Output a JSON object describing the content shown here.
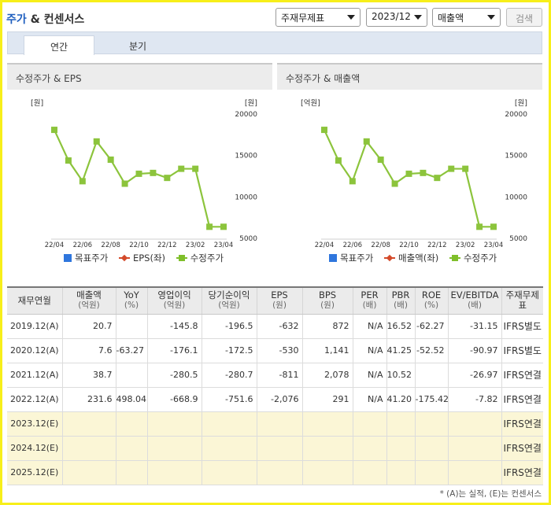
{
  "header": {
    "title_blue": "주가",
    "title_rest": "& 컨센서스",
    "select_standard": "주재무제표",
    "select_period": "2023/12",
    "select_metric": "매출액",
    "search_label": "검색"
  },
  "tabs": [
    {
      "label": "연간",
      "active": true
    },
    {
      "label": "분기",
      "active": false
    }
  ],
  "charts": [
    {
      "title": "수정주가 & EPS",
      "left_unit": "[원]",
      "right_unit": "[원]",
      "legend": [
        "목표주가",
        "EPS(좌)",
        "수정주가"
      ]
    },
    {
      "title": "수정주가 & 매출액",
      "left_unit": "[억원]",
      "right_unit": "[원]",
      "legend": [
        "목표주가",
        "매출액(좌)",
        "수정주가"
      ]
    }
  ],
  "chart_data": [
    {
      "type": "line",
      "title": "수정주가 & EPS",
      "categories": [
        "22/04",
        "22/05",
        "22/06",
        "22/07",
        "22/08",
        "22/09",
        "22/10",
        "22/11",
        "22/12",
        "23/01",
        "23/02",
        "23/03",
        "23/04"
      ],
      "x_tick_labels": [
        "22/04",
        "22/06",
        "22/08",
        "22/10",
        "22/12",
        "23/02",
        "23/04"
      ],
      "y_right_ticks": [
        "20000",
        "15000",
        "10000",
        "5000"
      ],
      "y_right_range": [
        5000,
        20000
      ],
      "series": [
        {
          "name": "수정주가",
          "axis": "right",
          "color": "#8cc43c",
          "values": [
            18000,
            14300,
            11800,
            16600,
            14400,
            11500,
            12700,
            12800,
            12200,
            13300,
            13300,
            6300,
            6300
          ]
        }
      ],
      "legend_position": "bottom"
    },
    {
      "type": "line",
      "title": "수정주가 & 매출액",
      "categories": [
        "22/04",
        "22/05",
        "22/06",
        "22/07",
        "22/08",
        "22/09",
        "22/10",
        "22/11",
        "22/12",
        "23/01",
        "23/02",
        "23/03",
        "23/04"
      ],
      "x_tick_labels": [
        "22/04",
        "22/06",
        "22/08",
        "22/10",
        "22/12",
        "23/02",
        "23/04"
      ],
      "y_right_ticks": [
        "20000",
        "15000",
        "10000",
        "5000"
      ],
      "y_right_range": [
        5000,
        20000
      ],
      "series": [
        {
          "name": "수정주가",
          "axis": "right",
          "color": "#8cc43c",
          "values": [
            18000,
            14300,
            11800,
            16600,
            14400,
            11500,
            12700,
            12800,
            12200,
            13300,
            13300,
            6300,
            6300
          ]
        }
      ],
      "legend_position": "bottom"
    }
  ],
  "table": {
    "headers": [
      {
        "name": "재무연월",
        "unit": ""
      },
      {
        "name": "매출액",
        "unit": "(억원)"
      },
      {
        "name": "YoY",
        "unit": "(%)"
      },
      {
        "name": "영업이익",
        "unit": "(억원)"
      },
      {
        "name": "당기순이익",
        "unit": "(억원)"
      },
      {
        "name": "EPS",
        "unit": "(원)"
      },
      {
        "name": "BPS",
        "unit": "(원)"
      },
      {
        "name": "PER",
        "unit": "(배)"
      },
      {
        "name": "PBR",
        "unit": "(배)"
      },
      {
        "name": "ROE",
        "unit": "(%)"
      },
      {
        "name": "EV/EBITDA",
        "unit": "(배)"
      },
      {
        "name": "주재무제표",
        "unit": ""
      }
    ],
    "rows": [
      {
        "estimate": false,
        "cells": [
          "2019.12(A)",
          "20.7",
          "",
          "-145.8",
          "-196.5",
          "-632",
          "872",
          "N/A",
          "16.52",
          "-62.27",
          "-31.15",
          "IFRS별도"
        ]
      },
      {
        "estimate": false,
        "cells": [
          "2020.12(A)",
          "7.6",
          "-63.27",
          "-176.1",
          "-172.5",
          "-530",
          "1,141",
          "N/A",
          "41.25",
          "-52.52",
          "-90.97",
          "IFRS별도"
        ]
      },
      {
        "estimate": false,
        "cells": [
          "2021.12(A)",
          "38.7",
          "",
          "-280.5",
          "-280.7",
          "-811",
          "2,078",
          "N/A",
          "10.52",
          "",
          "-26.97",
          "IFRS연결"
        ]
      },
      {
        "estimate": false,
        "cells": [
          "2022.12(A)",
          "231.6",
          "498.04",
          "-668.9",
          "-751.6",
          "-2,076",
          "291",
          "N/A",
          "41.20",
          "-175.42",
          "-7.82",
          "IFRS연결"
        ]
      },
      {
        "estimate": true,
        "cells": [
          "2023.12(E)",
          "",
          "",
          "",
          "",
          "",
          "",
          "",
          "",
          "",
          "",
          "IFRS연결"
        ]
      },
      {
        "estimate": true,
        "cells": [
          "2024.12(E)",
          "",
          "",
          "",
          "",
          "",
          "",
          "",
          "",
          "",
          "",
          "IFRS연결"
        ]
      },
      {
        "estimate": true,
        "cells": [
          "2025.12(E)",
          "",
          "",
          "",
          "",
          "",
          "",
          "",
          "",
          "",
          "",
          "IFRS연결"
        ]
      }
    ]
  },
  "footnote": "* (A)는 실적, (E)는 컨센서스",
  "colors": {
    "frame": "#f7ef1a",
    "title_accent": "#1f5fbf",
    "price_line": "#8cc43c",
    "eps_marker": "#d44a2a",
    "target_marker": "#2f76dd",
    "estimate_row": "#fbf6d6"
  }
}
